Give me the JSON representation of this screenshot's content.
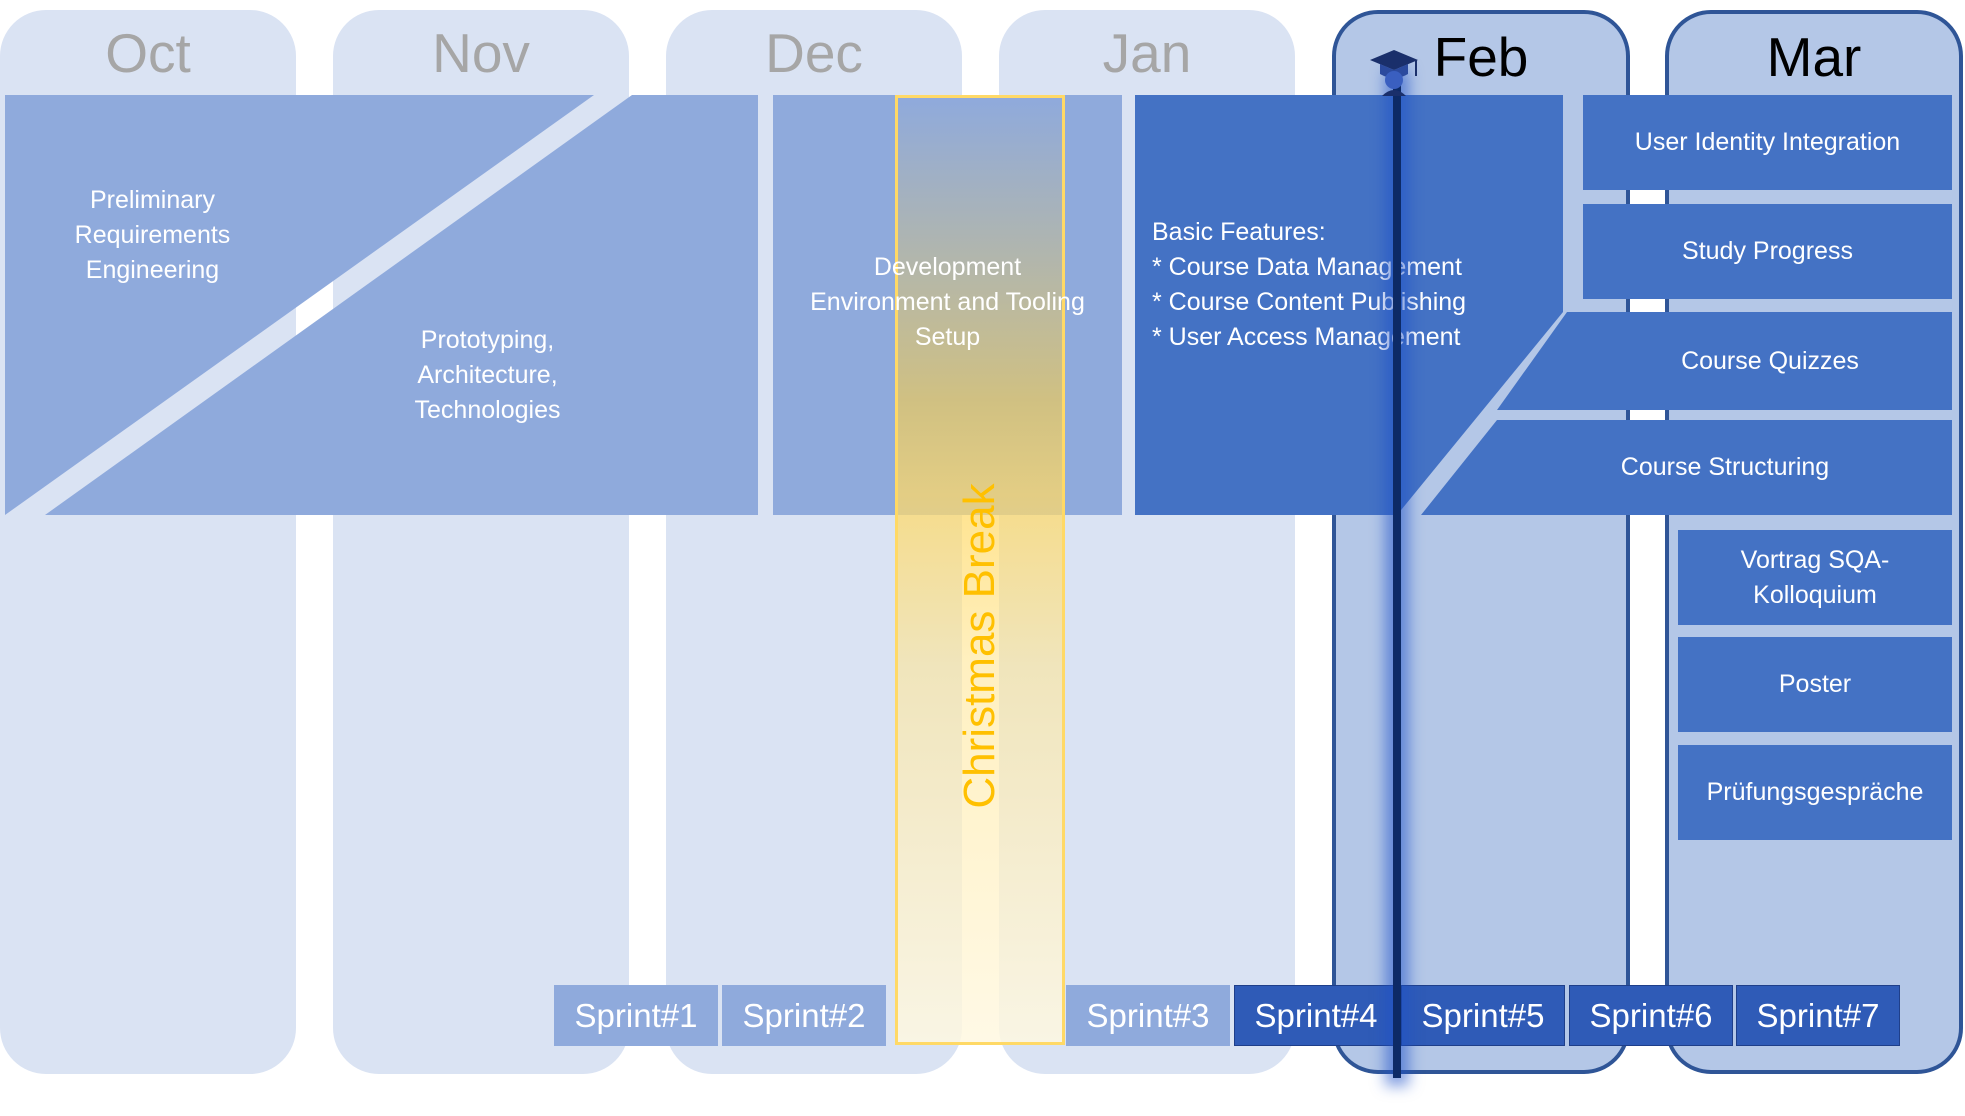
{
  "months": [
    {
      "label": "Oct",
      "state": "past"
    },
    {
      "label": "Nov",
      "state": "past"
    },
    {
      "label": "Dec",
      "state": "past"
    },
    {
      "label": "Jan",
      "state": "past"
    },
    {
      "label": "Feb",
      "state": "current"
    },
    {
      "label": "Mar",
      "state": "current"
    }
  ],
  "phases": {
    "requirements": "Preliminary\nRequirements\nEngineering",
    "prototyping": "Prototyping,\nArchitecture,\nTechnologies",
    "dev_env": "Development\nEnvironment and Tooling\nSetup",
    "basic_features": {
      "heading": "Basic Features:",
      "items": [
        "* Course Data Management",
        "* Course Content Publishing",
        "* User Access Management"
      ]
    }
  },
  "feature_blocks": [
    "User Identity Integration",
    "Study Progress",
    "Course Quizzes",
    "Course Structuring"
  ],
  "march_tasks": [
    "Vortrag SQA-\nKolloquium",
    "Poster",
    "Prüfungsgespräche"
  ],
  "christmas_break": "Christmas Break",
  "sprints": [
    "Sprint#1",
    "Sprint#2",
    "Sprint#3",
    "Sprint#4",
    "Sprint#5",
    "Sprint#6",
    "Sprint#7"
  ],
  "colors": {
    "past_month_bg": "#dae3f3",
    "current_month_bg": "#b4c7e7",
    "light_block": "#8faadc",
    "dark_block": "#4472c4",
    "break_accent": "#ffc000",
    "today_line": "#0d2a66"
  },
  "icons": [
    "graduate-icon"
  ]
}
